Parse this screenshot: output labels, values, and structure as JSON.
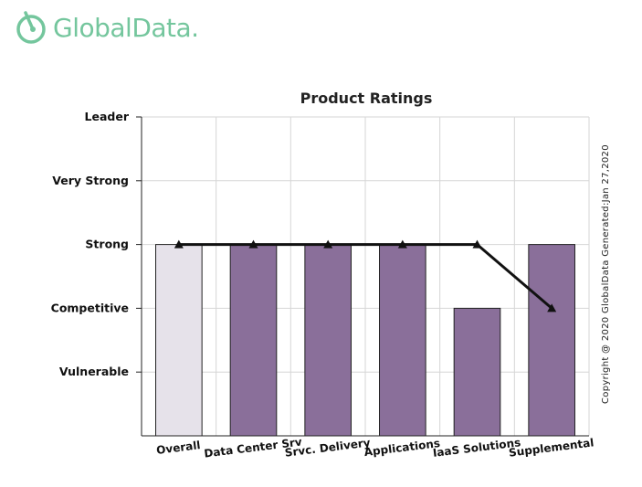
{
  "logo": {
    "text": "GlobalData.",
    "color": "#74c69d"
  },
  "copyright": "Copyright @ 2020 GlobalData Generated:Jan 27,2020",
  "chart_data": {
    "type": "bar",
    "title": "Product Ratings",
    "xlabel": "",
    "ylabel": "",
    "y_tick_labels": [
      "Vulnerable",
      "Competitive",
      "Strong",
      "Very Strong",
      "Leader"
    ],
    "ylim": [
      0,
      5
    ],
    "categories": [
      "Overall",
      "Data Center Srv",
      "Srvc. Delivery",
      "Applications",
      "IaaS Solutions",
      "Supplemental"
    ],
    "series": [
      {
        "type": "bar",
        "values": [
          3,
          3,
          3,
          3,
          2,
          3
        ],
        "colors": [
          "#e6e2ea",
          "#8a6f9a",
          "#8a6f9a",
          "#8a6f9a",
          "#8a6f9a",
          "#8a6f9a"
        ]
      },
      {
        "type": "line",
        "values": [
          3,
          3,
          3,
          3,
          3,
          2
        ],
        "color": "#111111",
        "marker": "triangle"
      }
    ],
    "grid": true,
    "legend": "none"
  }
}
